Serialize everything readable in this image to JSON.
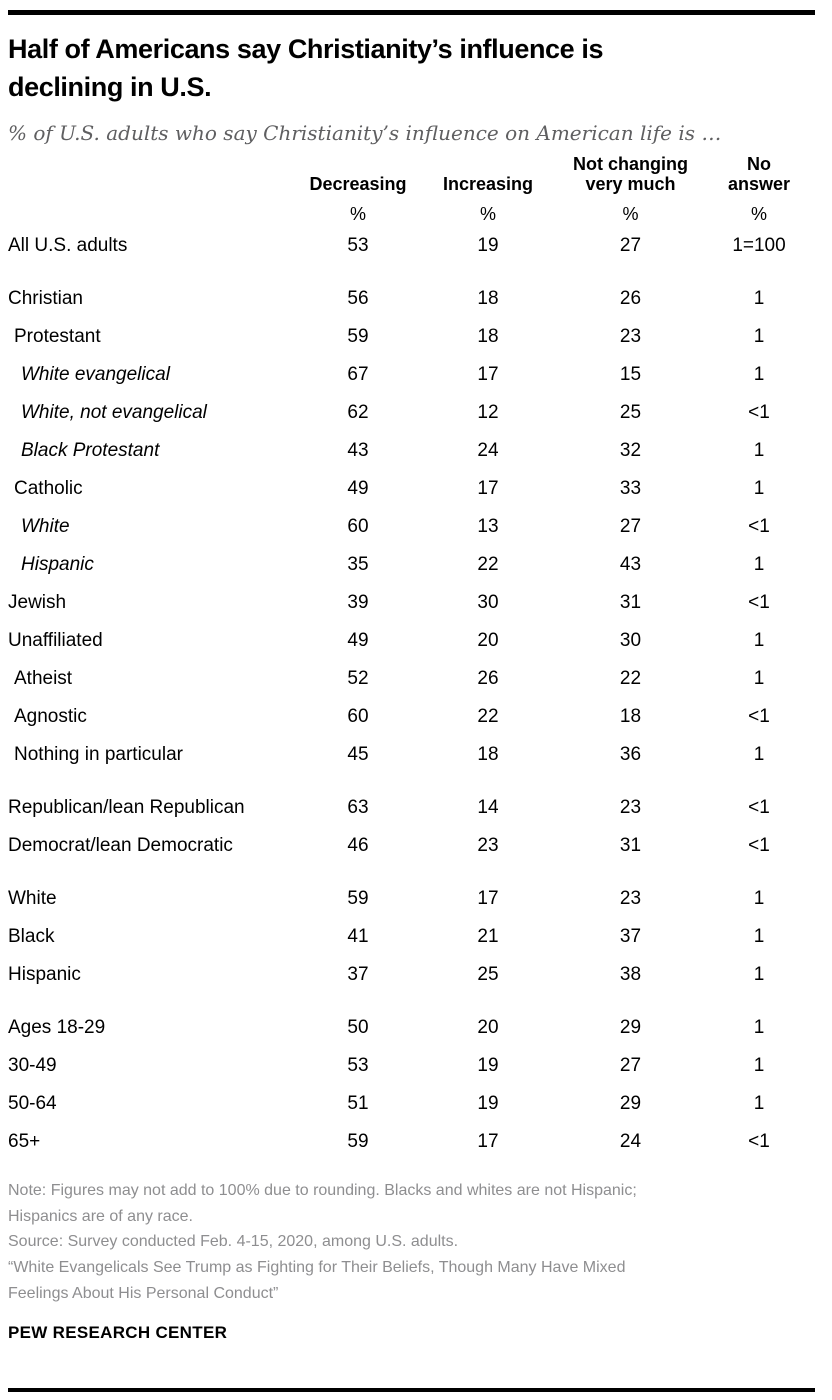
{
  "chart_data": {
    "type": "table",
    "title": "Half of Americans say Christianity’s influence is\ndeclining in U.S.",
    "subtitle": "% of U.S. adults who say Christianity’s influence on American life is …",
    "columns": [
      "Decreasing",
      "Increasing",
      "Not changing\nvery much",
      "No\nanswer"
    ],
    "unit_label": "%",
    "sections": [
      {
        "rows": [
          {
            "label": "All U.S. adults",
            "indent": 0,
            "italic": false,
            "values": [
              "53",
              "19",
              "27",
              "1=100"
            ]
          }
        ]
      },
      {
        "rows": [
          {
            "label": "Christian",
            "indent": 0,
            "italic": false,
            "values": [
              "56",
              "18",
              "26",
              "1"
            ]
          },
          {
            "label": "Protestant",
            "indent": 1,
            "italic": false,
            "values": [
              "59",
              "18",
              "23",
              "1"
            ]
          },
          {
            "label": "White evangelical",
            "indent": 2,
            "italic": true,
            "values": [
              "67",
              "17",
              "15",
              "1"
            ]
          },
          {
            "label": "White, not evangelical",
            "indent": 2,
            "italic": true,
            "values": [
              "62",
              "12",
              "25",
              "<1"
            ]
          },
          {
            "label": "Black Protestant",
            "indent": 2,
            "italic": true,
            "values": [
              "43",
              "24",
              "32",
              "1"
            ]
          },
          {
            "label": "Catholic",
            "indent": 1,
            "italic": false,
            "values": [
              "49",
              "17",
              "33",
              "1"
            ]
          },
          {
            "label": "White",
            "indent": 2,
            "italic": true,
            "values": [
              "60",
              "13",
              "27",
              "<1"
            ]
          },
          {
            "label": "Hispanic",
            "indent": 2,
            "italic": true,
            "values": [
              "35",
              "22",
              "43",
              "1"
            ]
          },
          {
            "label": "Jewish",
            "indent": 0,
            "italic": false,
            "values": [
              "39",
              "30",
              "31",
              "<1"
            ]
          },
          {
            "label": "Unaffiliated",
            "indent": 0,
            "italic": false,
            "values": [
              "49",
              "20",
              "30",
              "1"
            ]
          },
          {
            "label": "Atheist",
            "indent": 1,
            "italic": false,
            "values": [
              "52",
              "26",
              "22",
              "1"
            ]
          },
          {
            "label": "Agnostic",
            "indent": 1,
            "italic": false,
            "values": [
              "60",
              "22",
              "18",
              "<1"
            ]
          },
          {
            "label": "Nothing in particular",
            "indent": 1,
            "italic": false,
            "values": [
              "45",
              "18",
              "36",
              "1"
            ]
          }
        ]
      },
      {
        "rows": [
          {
            "label": "Republican/lean Republican",
            "indent": 0,
            "italic": false,
            "values": [
              "63",
              "14",
              "23",
              "<1"
            ]
          },
          {
            "label": "Democrat/lean Democratic",
            "indent": 0,
            "italic": false,
            "values": [
              "46",
              "23",
              "31",
              "<1"
            ]
          }
        ]
      },
      {
        "rows": [
          {
            "label": "White",
            "indent": 0,
            "italic": false,
            "values": [
              "59",
              "17",
              "23",
              "1"
            ]
          },
          {
            "label": "Black",
            "indent": 0,
            "italic": false,
            "values": [
              "41",
              "21",
              "37",
              "1"
            ]
          },
          {
            "label": "Hispanic",
            "indent": 0,
            "italic": false,
            "values": [
              "37",
              "25",
              "38",
              "1"
            ]
          }
        ]
      },
      {
        "rows": [
          {
            "label": "Ages 18-29",
            "indent": 0,
            "italic": false,
            "values": [
              "50",
              "20",
              "29",
              "1"
            ]
          },
          {
            "label": "30-49",
            "indent": 0,
            "italic": false,
            "values": [
              "53",
              "19",
              "27",
              "1"
            ]
          },
          {
            "label": "50-64",
            "indent": 0,
            "italic": false,
            "values": [
              "51",
              "19",
              "29",
              "1"
            ]
          },
          {
            "label": "65+",
            "indent": 0,
            "italic": false,
            "values": [
              "59",
              "17",
              "24",
              "<1"
            ]
          }
        ]
      }
    ],
    "note": "Note: Figures may not add to 100% due to rounding. Blacks and whites are not Hispanic;\nHispanics are of any race.",
    "source": "Source: Survey conducted Feb. 4-15, 2020, among U.S. adults.",
    "report_title": "“White Evangelicals See Trump as Fighting for Their Beliefs, Though Many Have Mixed\nFeelings About His Personal Conduct”",
    "brand": "PEW RESEARCH CENTER",
    "layout": {
      "grid": false,
      "legend": false,
      "value_alignment": "center"
    },
    "colors": {
      "text": "#000000",
      "subtitle_gray": "#5f5f61",
      "note_gray": "#8e8e90",
      "rule_black": "#000000"
    }
  }
}
